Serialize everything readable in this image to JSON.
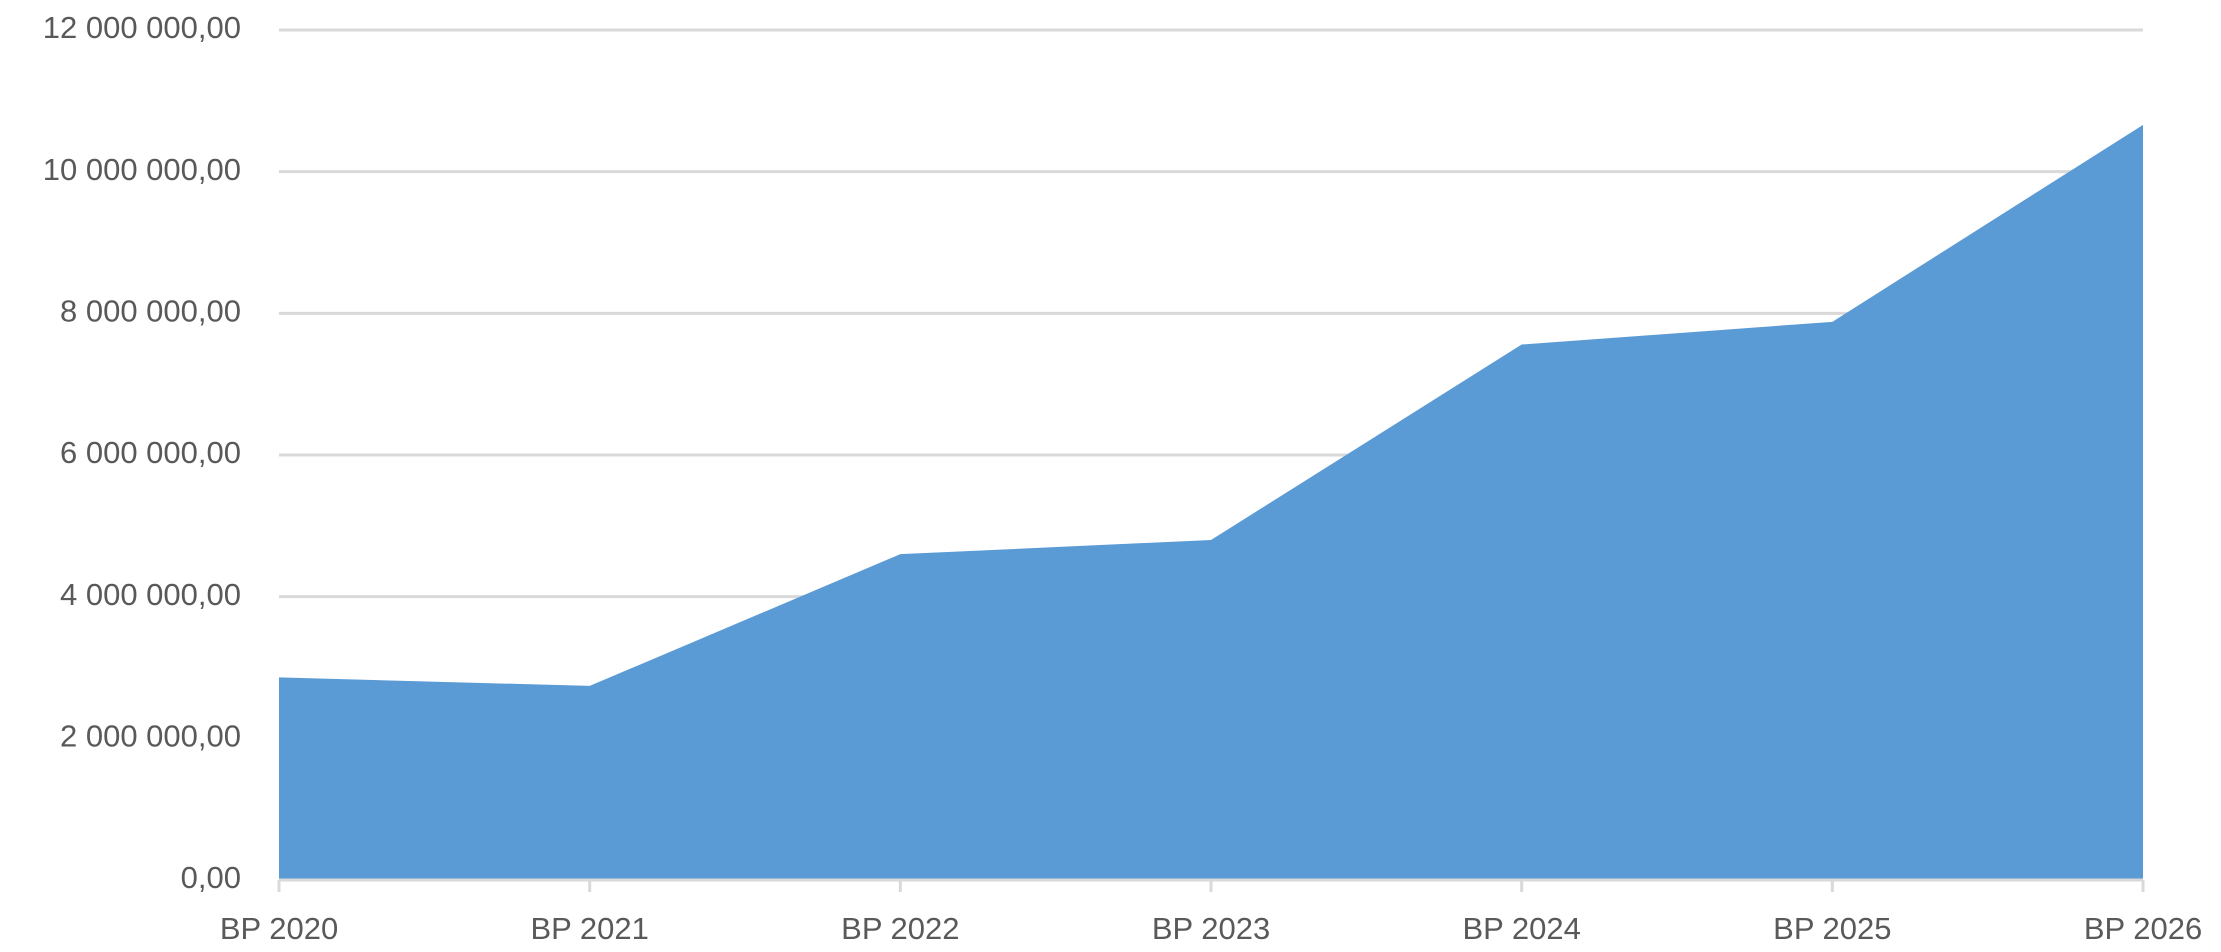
{
  "chart_data": {
    "type": "area",
    "categories": [
      "BP 2020",
      "BP 2021",
      "BP 2022",
      "BP 2023",
      "BP 2024",
      "BP 2025",
      "BP 2026"
    ],
    "series": [
      {
        "color": "#5b9bd5",
        "values": [
          2860000,
          2740000,
          4600000,
          4800000,
          7560000,
          7880000,
          10660000
        ]
      }
    ],
    "ylim": [
      0,
      12000000
    ],
    "yticks": [
      {
        "value": 0,
        "label": "0,00"
      },
      {
        "value": 2000000,
        "label": "2 000 000,00"
      },
      {
        "value": 4000000,
        "label": "4 000 000,00"
      },
      {
        "value": 6000000,
        "label": "6 000 000,00"
      },
      {
        "value": 8000000,
        "label": "8 000 000,00"
      },
      {
        "value": 10000000,
        "label": "10 000 000,00"
      },
      {
        "value": 12000000,
        "label": "12 000 000,00"
      }
    ],
    "grid": true
  }
}
